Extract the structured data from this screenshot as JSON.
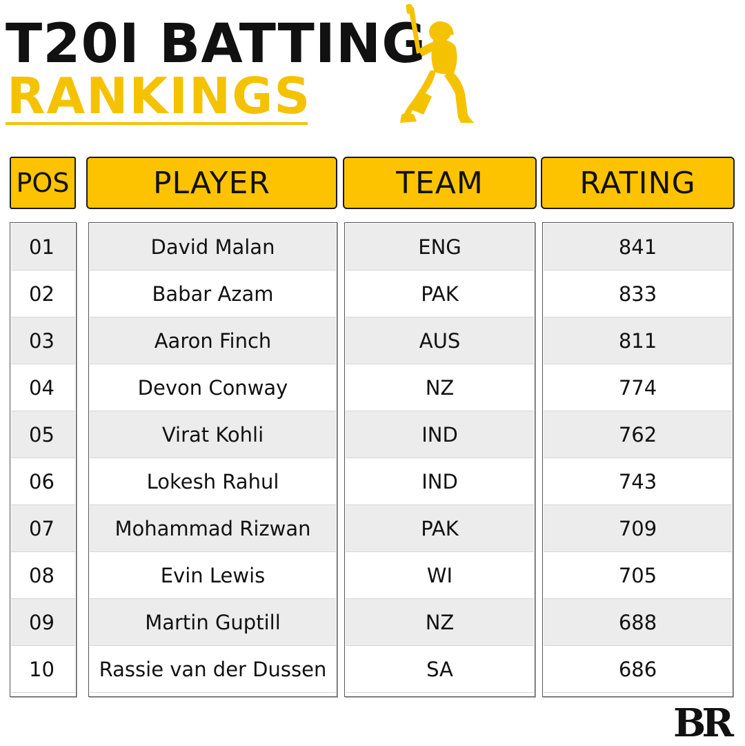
{
  "title": {
    "line1": "T20I BATTING",
    "line2": "RANKINGS"
  },
  "headers": {
    "pos": "POS",
    "player": "PLAYER",
    "team": "TEAM",
    "rating": "RATING"
  },
  "rows": [
    {
      "pos": "01",
      "player": "David Malan",
      "team": "ENG",
      "rating": "841"
    },
    {
      "pos": "02",
      "player": "Babar Azam",
      "team": "PAK",
      "rating": "833"
    },
    {
      "pos": "03",
      "player": "Aaron Finch",
      "team": "AUS",
      "rating": "811"
    },
    {
      "pos": "04",
      "player": "Devon Conway",
      "team": "NZ",
      "rating": "774"
    },
    {
      "pos": "05",
      "player": "Virat Kohli",
      "team": "IND",
      "rating": "762"
    },
    {
      "pos": "06",
      "player": "Lokesh Rahul",
      "team": "IND",
      "rating": "743"
    },
    {
      "pos": "07",
      "player": "Mohammad Rizwan",
      "team": "PAK",
      "rating": "709"
    },
    {
      "pos": "08",
      "player": "Evin Lewis",
      "team": "WI",
      "rating": "705"
    },
    {
      "pos": "09",
      "player": "Martin Guptill",
      "team": "NZ",
      "rating": "688"
    },
    {
      "pos": "10",
      "player": "Rassie van der Dussen",
      "team": "SA",
      "rating": "686"
    }
  ],
  "logo": "BR",
  "icons": {
    "batsman": "cricket-batsman-icon"
  },
  "colors": {
    "accent": "#fdc300",
    "title_dark": "#111111",
    "row_shade": "#ececec"
  }
}
